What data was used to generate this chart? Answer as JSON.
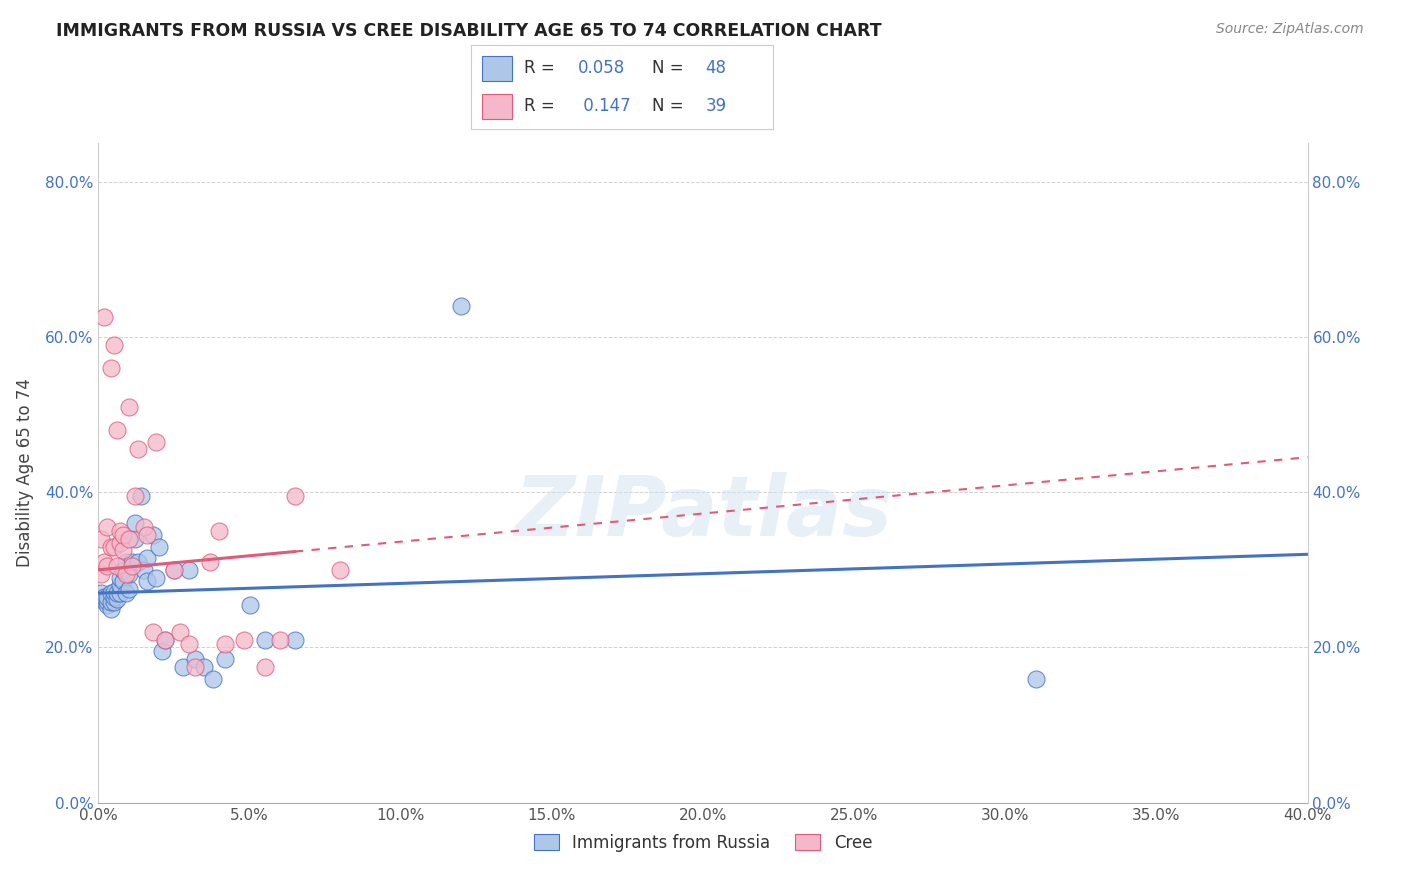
{
  "title": "IMMIGRANTS FROM RUSSIA VS CREE DISABILITY AGE 65 TO 74 CORRELATION CHART",
  "source": "Source: ZipAtlas.com",
  "ylabel": "Disability Age 65 to 74",
  "xlim": [
    0.0,
    0.4
  ],
  "ylim": [
    0.0,
    0.85
  ],
  "xticks": [
    0.0,
    0.05,
    0.1,
    0.15,
    0.2,
    0.25,
    0.3,
    0.35,
    0.4
  ],
  "yticks": [
    0.0,
    0.2,
    0.4,
    0.6,
    0.8
  ],
  "xtick_labels": [
    "0.0%",
    "5.0%",
    "10.0%",
    "15.0%",
    "20.0%",
    "25.0%",
    "30.0%",
    "35.0%",
    "40.0%"
  ],
  "ytick_labels": [
    "0.0%",
    "20.0%",
    "40.0%",
    "60.0%",
    "80.0%"
  ],
  "blue_R": 0.058,
  "blue_N": 48,
  "pink_R": 0.147,
  "pink_N": 39,
  "blue_color": "#aec6e8",
  "pink_color": "#f4b8ca",
  "blue_line_color": "#4472c4",
  "pink_line_color": "#e05a7a",
  "watermark": "ZIPatlas",
  "blue_trend": [
    0.27,
    0.32
  ],
  "pink_trend": [
    0.3,
    0.445
  ],
  "blue_scatter_x": [
    0.001,
    0.002,
    0.002,
    0.003,
    0.003,
    0.003,
    0.004,
    0.004,
    0.004,
    0.005,
    0.005,
    0.005,
    0.006,
    0.006,
    0.007,
    0.007,
    0.007,
    0.008,
    0.008,
    0.009,
    0.009,
    0.01,
    0.01,
    0.011,
    0.012,
    0.012,
    0.013,
    0.014,
    0.015,
    0.016,
    0.016,
    0.018,
    0.019,
    0.02,
    0.021,
    0.022,
    0.025,
    0.028,
    0.03,
    0.032,
    0.035,
    0.038,
    0.042,
    0.05,
    0.055,
    0.065,
    0.12,
    0.31
  ],
  "blue_scatter_y": [
    0.27,
    0.26,
    0.265,
    0.255,
    0.26,
    0.265,
    0.25,
    0.258,
    0.27,
    0.258,
    0.265,
    0.272,
    0.263,
    0.27,
    0.27,
    0.28,
    0.29,
    0.285,
    0.3,
    0.27,
    0.31,
    0.275,
    0.295,
    0.31,
    0.34,
    0.36,
    0.31,
    0.395,
    0.3,
    0.315,
    0.285,
    0.345,
    0.29,
    0.33,
    0.195,
    0.21,
    0.3,
    0.175,
    0.3,
    0.185,
    0.175,
    0.16,
    0.185,
    0.255,
    0.21,
    0.21,
    0.64,
    0.16
  ],
  "pink_scatter_x": [
    0.001,
    0.001,
    0.002,
    0.002,
    0.003,
    0.003,
    0.004,
    0.004,
    0.005,
    0.005,
    0.006,
    0.006,
    0.007,
    0.007,
    0.008,
    0.008,
    0.009,
    0.01,
    0.01,
    0.011,
    0.012,
    0.013,
    0.015,
    0.016,
    0.018,
    0.019,
    0.022,
    0.025,
    0.027,
    0.03,
    0.032,
    0.037,
    0.04,
    0.042,
    0.048,
    0.055,
    0.06,
    0.065,
    0.08
  ],
  "pink_scatter_y": [
    0.295,
    0.34,
    0.31,
    0.625,
    0.305,
    0.355,
    0.56,
    0.33,
    0.33,
    0.59,
    0.305,
    0.48,
    0.335,
    0.35,
    0.325,
    0.345,
    0.295,
    0.34,
    0.51,
    0.305,
    0.395,
    0.455,
    0.355,
    0.345,
    0.22,
    0.465,
    0.21,
    0.3,
    0.22,
    0.205,
    0.175,
    0.31,
    0.35,
    0.205,
    0.21,
    0.175,
    0.21,
    0.395,
    0.3
  ]
}
